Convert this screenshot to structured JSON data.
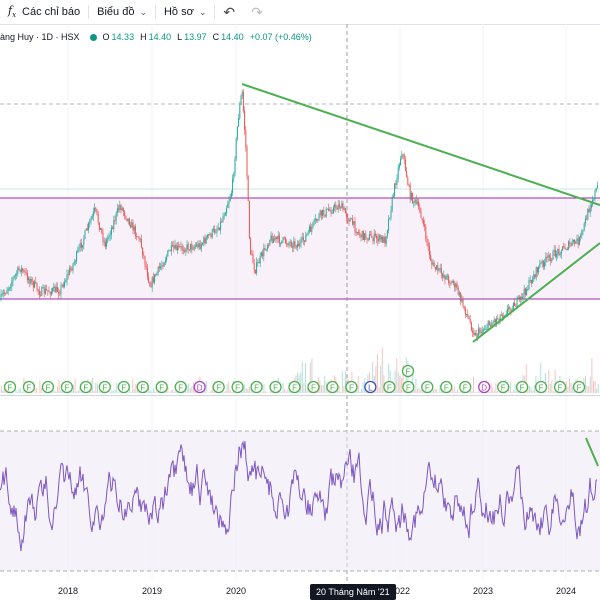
{
  "toolbar": {
    "indicators_label": "Các chỉ báo",
    "chart_label": "Biểu đồ",
    "profile_label": "Hồ sơ",
    "undo_icon": "undo-icon",
    "redo_icon": "redo-icon"
  },
  "legend": {
    "symbol": "àng Huy · 1D · HSX",
    "open_label": "O",
    "open_value": "14.33",
    "high_label": "H",
    "high_value": "14.40",
    "low_label": "L",
    "low_value": "13.97",
    "close_label": "C",
    "close_value": "14.40",
    "change": "+0.07 (+0.46%)",
    "status_color": "#089981"
  },
  "chart_data": {
    "type": "line",
    "x_ticks": [
      "2018",
      "2019",
      "2020",
      "2022",
      "2023",
      "2024"
    ],
    "crosshair_date": "20 Tháng Năm '21",
    "event_markers": [
      "F",
      "F",
      "F",
      "F",
      "F",
      "F",
      "F",
      "F",
      "F",
      "F",
      "D",
      "F",
      "F",
      "F",
      "F",
      "F",
      "F",
      "F",
      "F",
      "L",
      "F",
      "F",
      "F",
      "F",
      "F",
      "D",
      "F",
      "F",
      "F",
      "F",
      "F"
    ],
    "colors": {
      "up": "#26a69a",
      "down": "#ef5350",
      "trendline": "#4caf50",
      "range_band": "#9c27b0",
      "oscillator": "#7e57c2",
      "marker": "#4caf50"
    }
  }
}
